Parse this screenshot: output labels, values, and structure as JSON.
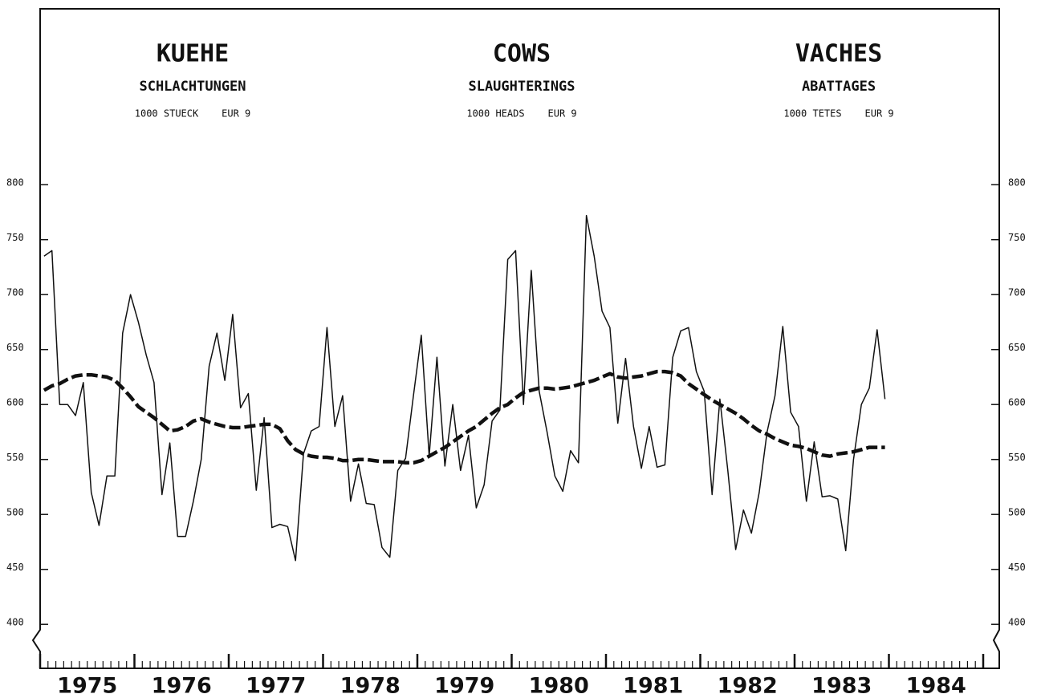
{
  "chart_data": {
    "type": "line",
    "titles": [
      {
        "title": "KUEHE",
        "subtitle": "SCHLACHTUNGEN",
        "unit": "1000 STUECK    EUR 9"
      },
      {
        "title": "COWS",
        "subtitle": "SLAUGHTERINGS",
        "unit": "1000 HEADS    EUR 9"
      },
      {
        "title": "VACHES",
        "subtitle": "ABATTAGES",
        "unit": "1000 TETES    EUR 9"
      }
    ],
    "x": [
      1975.042,
      1975.125,
      1975.208,
      1975.292,
      1975.375,
      1975.458,
      1975.542,
      1975.625,
      1975.708,
      1975.792,
      1975.875,
      1975.958,
      1976.042,
      1976.125,
      1976.208,
      1976.292,
      1976.375,
      1976.458,
      1976.542,
      1976.625,
      1976.708,
      1976.792,
      1976.875,
      1976.958,
      1977.042,
      1977.125,
      1977.208,
      1977.292,
      1977.375,
      1977.458,
      1977.542,
      1977.625,
      1977.708,
      1977.792,
      1977.875,
      1977.958,
      1978.042,
      1978.125,
      1978.208,
      1978.292,
      1978.375,
      1978.458,
      1978.542,
      1978.625,
      1978.708,
      1978.792,
      1978.875,
      1978.958,
      1979.042,
      1979.125,
      1979.208,
      1979.292,
      1979.375,
      1979.458,
      1979.542,
      1979.625,
      1979.708,
      1979.792,
      1979.875,
      1979.958,
      1980.042,
      1980.125,
      1980.208,
      1980.292,
      1980.375,
      1980.458,
      1980.542,
      1980.625,
      1980.708,
      1980.792,
      1980.875,
      1980.958,
      1981.042,
      1981.125,
      1981.208,
      1981.292,
      1981.375,
      1981.458,
      1981.542,
      1981.625,
      1981.708,
      1981.792,
      1981.875,
      1981.958,
      1982.042,
      1982.125,
      1982.208,
      1982.292,
      1982.375,
      1982.458,
      1982.542,
      1982.625,
      1982.708,
      1982.792,
      1982.875,
      1982.958,
      1983.042,
      1983.125,
      1983.208,
      1983.292,
      1983.375,
      1983.458,
      1983.542,
      1983.625,
      1983.708,
      1983.792,
      1983.875,
      1983.958
    ],
    "series": [
      {
        "color": "#111111",
        "line_style": "solid",
        "values": [
          735,
          740,
          600,
          600,
          590,
          620,
          520,
          490,
          535,
          535,
          665,
          700,
          675,
          645,
          620,
          518,
          565,
          480,
          480,
          512,
          550,
          635,
          665,
          622,
          682,
          597,
          610,
          522,
          588,
          488,
          491,
          489,
          458,
          555,
          576,
          580,
          670,
          580,
          608,
          512,
          546,
          510,
          509,
          470,
          461,
          540,
          551,
          608,
          663,
          553,
          643,
          544,
          600,
          540,
          572,
          506,
          527,
          585,
          595,
          732,
          740,
          600,
          722,
          612,
          575,
          535,
          521,
          558,
          547,
          772,
          735,
          685,
          670,
          583,
          642,
          580,
          542,
          580,
          543,
          545,
          643,
          667,
          670,
          630,
          612,
          518,
          605,
          540,
          468,
          504,
          483,
          520,
          575,
          608,
          671,
          593,
          580,
          512,
          566,
          516,
          517,
          514,
          467,
          550,
          600,
          615,
          668,
          605
        ]
      },
      {
        "color": "#111111",
        "line_style": "dashed",
        "values": [
          613,
          617,
          619,
          623,
          626,
          627,
          627,
          626,
          625,
          622,
          615,
          607,
          598,
          593,
          588,
          582,
          576,
          577,
          580,
          585,
          587,
          584,
          582,
          580,
          579,
          579,
          580,
          581,
          582,
          582,
          578,
          567,
          559,
          555,
          553,
          552,
          552,
          551,
          549,
          549,
          550,
          550,
          549,
          548,
          548,
          548,
          547,
          547,
          549,
          553,
          557,
          561,
          566,
          571,
          576,
          580,
          586,
          592,
          597,
          600,
          606,
          611,
          613,
          615,
          615,
          614,
          615,
          616,
          618,
          620,
          622,
          625,
          628,
          625,
          624,
          625,
          626,
          628,
          630,
          630,
          629,
          626,
          619,
          614,
          609,
          604,
          600,
          596,
          592,
          587,
          581,
          576,
          573,
          569,
          566,
          563,
          562,
          560,
          557,
          554,
          553,
          555,
          556,
          557,
          559,
          561,
          561,
          561
        ]
      }
    ],
    "xlim": [
      1975,
      1985
    ],
    "xticks": [
      {
        "value": 1975.5,
        "label": "1975"
      },
      {
        "value": 1976.5,
        "label": "1976"
      },
      {
        "value": 1977.5,
        "label": "1977"
      },
      {
        "value": 1978.5,
        "label": "1978"
      },
      {
        "value": 1979.5,
        "label": "1979"
      },
      {
        "value": 1980.5,
        "label": "1980"
      },
      {
        "value": 1981.5,
        "label": "1981"
      },
      {
        "value": 1982.5,
        "label": "1982"
      },
      {
        "value": 1983.5,
        "label": "1983"
      },
      {
        "value": 1984.5,
        "label": "1984"
      }
    ],
    "ylim": [
      360,
      960
    ],
    "yticks": [
      400,
      450,
      500,
      550,
      600,
      650,
      700,
      750,
      800
    ]
  }
}
